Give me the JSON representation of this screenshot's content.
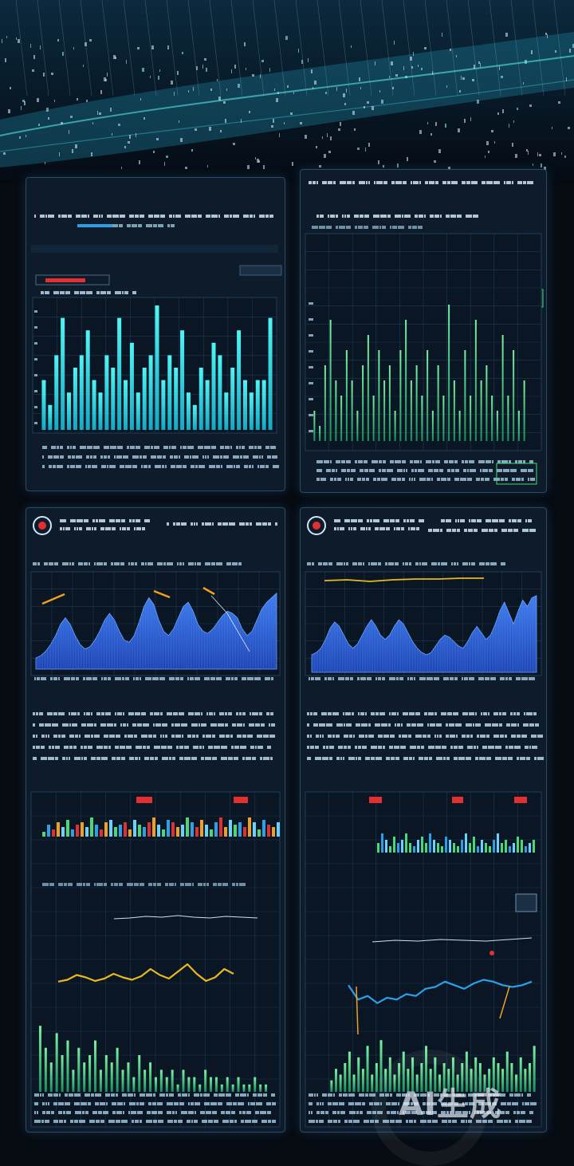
{
  "watermark": "AI生成",
  "colors": {
    "background": "#070b12",
    "panel": "#0d1b2a",
    "grid": "#1d3954",
    "cyan": "#2de3e8",
    "teal": "#2ad4c6",
    "blue": "#2e6fe0",
    "orange": "#f0a020",
    "yellow": "#e8b820",
    "red": "#e23030",
    "green": "#48d878",
    "sky": "#2aa0e8"
  },
  "icons": [
    "target-icon",
    "target-icon"
  ],
  "chart_data": [
    {
      "type": "bar",
      "values": [
        4,
        2,
        6,
        9,
        3,
        5,
        6,
        8,
        4,
        3,
        6,
        5,
        9,
        4,
        7,
        3,
        5,
        6,
        10,
        4,
        6,
        5,
        8,
        3,
        2,
        5,
        4,
        7,
        6,
        3,
        5,
        8,
        4,
        3,
        4,
        4,
        9
      ]
    },
    {
      "type": "bar",
      "values": [
        2,
        1,
        5,
        8,
        4,
        3,
        6,
        4,
        2,
        5,
        7,
        3,
        6,
        4,
        5,
        2,
        6,
        8,
        4,
        5,
        3,
        6,
        2,
        5,
        3,
        9,
        4,
        2,
        6,
        3,
        8,
        4,
        5,
        3,
        2,
        7,
        3,
        6,
        2,
        4
      ]
    },
    {
      "type": "area",
      "values": [
        1,
        1.2,
        1.6,
        2.2,
        3.0,
        4.0,
        4.6,
        4.0,
        3.0,
        2.2,
        1.8,
        2.0,
        2.6,
        3.4,
        4.4,
        5.0,
        4.4,
        3.4,
        2.6,
        2.4,
        3.0,
        4.2,
        5.6,
        6.4,
        5.8,
        4.4,
        3.4,
        3.0,
        3.6,
        4.6,
        5.6,
        6.0,
        5.2,
        4.0,
        3.4,
        3.2,
        3.6,
        4.2,
        4.8,
        5.2,
        5.0,
        4.6,
        3.6,
        3.0,
        3.4,
        4.4,
        5.4,
        6.0,
        6.4,
        6.8
      ]
    },
    {
      "type": "area",
      "values": [
        1.6,
        1.8,
        2.2,
        3.0,
        4.0,
        4.6,
        4.2,
        3.4,
        2.6,
        2.2,
        2.6,
        3.4,
        4.2,
        4.8,
        4.2,
        3.4,
        3.0,
        3.4,
        4.2,
        4.8,
        4.4,
        3.6,
        2.8,
        2.2,
        1.8,
        1.6,
        1.8,
        2.4,
        3.0,
        3.4,
        3.2,
        2.8,
        2.4,
        2.2,
        2.8,
        3.6,
        4.2,
        3.6,
        3.0,
        3.4,
        4.4,
        5.6,
        6.4,
        5.4,
        4.4,
        5.6,
        6.6,
        6.0,
        6.8,
        7.0
      ]
    },
    {
      "type": "bar",
      "values": [
        2,
        5,
        3,
        6,
        4,
        7,
        3,
        5,
        6,
        4,
        8,
        5,
        3,
        6,
        7,
        4,
        5,
        6,
        3,
        7,
        5,
        4,
        6,
        8,
        5,
        3,
        7,
        6,
        4,
        5,
        8,
        6,
        4,
        7,
        5,
        3,
        6,
        8,
        4,
        7,
        5,
        6,
        4,
        8,
        6,
        3,
        7,
        5,
        4,
        6
      ]
    },
    {
      "type": "bar",
      "values": [
        3,
        6,
        4,
        2,
        5,
        3,
        4,
        6,
        3,
        2,
        4,
        5,
        3,
        6,
        4,
        3,
        2,
        5,
        4,
        3,
        2,
        4,
        6,
        3,
        5,
        2,
        4,
        3,
        2,
        4,
        6,
        3,
        4,
        2,
        3,
        5,
        4,
        2,
        3,
        4
      ]
    },
    {
      "type": "line",
      "values": [
        3.5,
        3.8,
        4.6,
        4.2,
        3.6,
        4.0,
        4.8,
        4.2,
        3.8,
        4.4,
        5.6,
        4.6,
        4.0,
        5.2,
        6.4,
        4.8,
        3.6,
        4.2,
        5.6,
        4.8
      ]
    },
    {
      "type": "bar",
      "values": [
        9,
        6,
        4,
        8,
        5,
        7,
        3,
        6,
        4,
        5,
        7,
        3,
        5,
        4,
        6,
        3,
        4,
        2,
        5,
        3,
        4,
        2,
        3,
        2,
        3,
        1,
        3,
        2,
        2,
        1,
        3,
        2,
        2,
        1,
        2,
        1,
        2,
        1,
        1,
        2,
        1,
        1
      ]
    },
    {
      "type": "line",
      "values": [
        4.6,
        3.0,
        3.4,
        2.6,
        3.2,
        3.0,
        3.6,
        3.4,
        4.2,
        4.4,
        5.0,
        4.6,
        4.2,
        4.8,
        5.2,
        5.0,
        4.6,
        4.4,
        4.6,
        5.0
      ]
    },
    {
      "type": "bar",
      "values": [
        2,
        4,
        3,
        5,
        7,
        3,
        6,
        4,
        8,
        3,
        5,
        9,
        4,
        6,
        3,
        5,
        7,
        4,
        6,
        3,
        5,
        8,
        4,
        6,
        3,
        5,
        4,
        6,
        3,
        5,
        7,
        4,
        6,
        5,
        3,
        4,
        6,
        5,
        4,
        7,
        5,
        3,
        6,
        4,
        5,
        8
      ]
    }
  ]
}
